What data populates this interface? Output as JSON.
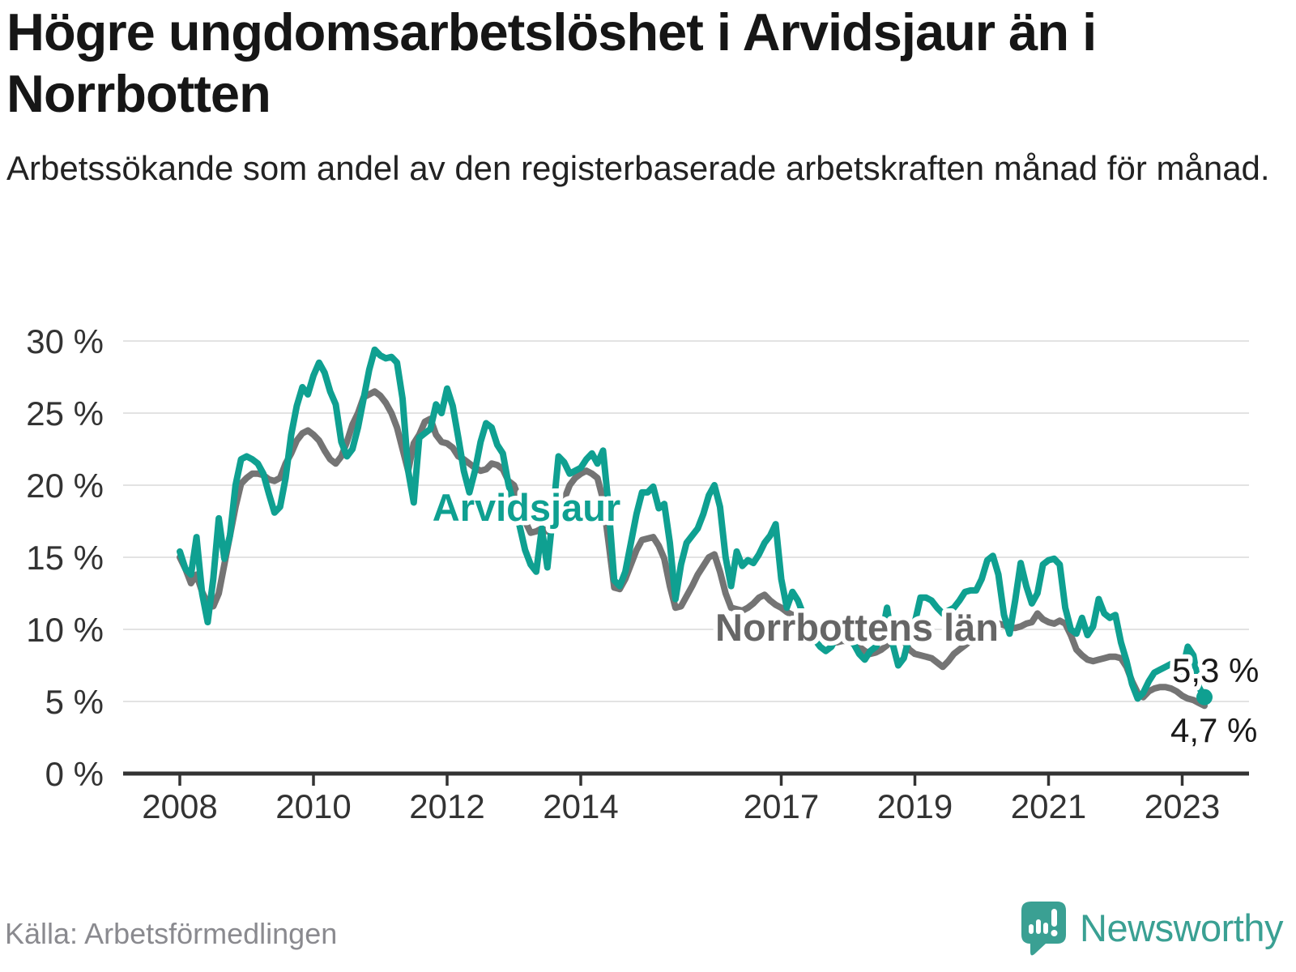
{
  "title": "Högre ungdomsarbetslöshet i Arvidsjaur än i Norrbotten",
  "subtitle": "Arbetssökande som andel av den registerbaserade arbetskraften månad för månad.",
  "source": "Källa: Arbetsförmedlingen",
  "brand": "Newsworthy",
  "colors": {
    "arvidsjaur": "#0fa091",
    "norrbotten": "#747474",
    "norrbotten_label": "#666666",
    "grid": "#e3e3e3",
    "axis": "#333333",
    "tick_text": "#333333",
    "title_text": "#161616",
    "annotation_text": "#1a1a1a",
    "source_text": "#8a8a8f",
    "brand_teal": "#3aa093",
    "background": "#ffffff"
  },
  "annotations": {
    "arvidsjaur_label": "Arvidsjaur",
    "norrbotten_label": "Norrbottens län",
    "end_label_arvidsjaur": "5,3 %",
    "end_label_norrbotten": "4,7 %"
  },
  "chart_data": {
    "type": "line",
    "unit": "%",
    "x_start": "2008-01",
    "x_end": "2023-05",
    "x_interval": "month",
    "n_points": 185,
    "x_tick_years": [
      2008,
      2010,
      2012,
      2014,
      2017,
      2019,
      2021,
      2023
    ],
    "y_ticks": [
      0,
      5,
      10,
      15,
      20,
      25,
      30
    ],
    "y_tick_suffix": " %",
    "ylim": [
      0,
      30
    ],
    "grid": true,
    "legend_position": "inline-labels",
    "series": [
      {
        "name": "Arvidsjaur",
        "color": "#0fa091",
        "end_value_label": "5,3 %",
        "values": [
          15.4,
          14.2,
          13.8,
          16.4,
          12.5,
          10.5,
          13.5,
          17.7,
          14.9,
          16.5,
          20.0,
          21.8,
          22.0,
          21.8,
          21.5,
          20.8,
          19.4,
          18.1,
          18.5,
          20.5,
          23.5,
          25.5,
          26.8,
          26.3,
          27.6,
          28.5,
          27.8,
          26.5,
          25.6,
          23.0,
          22.0,
          22.5,
          24.0,
          26.0,
          28.0,
          29.4,
          29.0,
          28.8,
          28.9,
          28.5,
          26.0,
          21.0,
          18.8,
          23.3,
          23.6,
          23.9,
          25.6,
          25.0,
          26.7,
          25.5,
          23.3,
          21.0,
          19.5,
          21.0,
          23.0,
          24.3,
          24.0,
          22.8,
          22.2,
          20.1,
          18.6,
          17.2,
          15.5,
          14.5,
          14.0,
          17.0,
          14.3,
          18.0,
          22.0,
          21.6,
          20.8,
          21.0,
          21.2,
          21.8,
          22.2,
          21.5,
          22.4,
          18.5,
          13.4,
          13.0,
          14.0,
          16.0,
          18.0,
          19.5,
          19.5,
          19.9,
          18.4,
          18.7,
          16.0,
          12.1,
          14.5,
          16.0,
          16.5,
          17.0,
          18.0,
          19.3,
          20.0,
          18.5,
          15.0,
          13.0,
          15.4,
          14.4,
          14.8,
          14.6,
          15.2,
          16.0,
          16.5,
          17.3,
          13.5,
          11.5,
          12.6,
          12.0,
          11.0,
          10.0,
          9.3,
          8.8,
          8.5,
          8.8,
          9.5,
          10.5,
          10.0,
          9.0,
          8.3,
          7.9,
          8.5,
          8.8,
          9.5,
          11.5,
          9.0,
          7.5,
          8.0,
          9.5,
          10.5,
          12.2,
          12.2,
          12.0,
          11.5,
          11.1,
          11.3,
          11.5,
          12.0,
          12.6,
          12.7,
          12.7,
          13.5,
          14.8,
          15.1,
          13.8,
          11.0,
          9.7,
          12.0,
          14.6,
          13.0,
          11.8,
          12.5,
          14.5,
          14.8,
          14.9,
          14.5,
          11.5,
          10.0,
          9.7,
          10.8,
          9.6,
          10.2,
          12.1,
          11.1,
          10.8,
          11.0,
          9.1,
          7.8,
          6.2,
          5.2,
          5.6,
          6.4,
          7.0,
          7.2,
          7.4,
          7.6,
          7.3,
          7.1,
          8.8,
          8.2,
          6.0,
          5.3
        ]
      },
      {
        "name": "Norrbottens län",
        "color": "#747474",
        "end_value_label": "4,7 %",
        "values": [
          15.0,
          14.2,
          13.2,
          13.8,
          12.6,
          11.8,
          11.6,
          12.5,
          14.5,
          16.5,
          18.5,
          20.1,
          20.5,
          20.8,
          20.8,
          20.7,
          20.4,
          20.3,
          20.5,
          21.5,
          22.2,
          23.1,
          23.6,
          23.8,
          23.5,
          23.1,
          22.4,
          21.8,
          21.5,
          22.0,
          23.0,
          24.2,
          25.0,
          26.1,
          26.3,
          26.5,
          26.2,
          25.7,
          25.0,
          24.0,
          22.5,
          21.0,
          22.9,
          23.5,
          24.4,
          24.6,
          23.5,
          23.0,
          22.9,
          22.6,
          22.0,
          21.8,
          21.5,
          21.2,
          21.0,
          21.1,
          21.5,
          21.4,
          21.1,
          20.3,
          20.0,
          19.0,
          17.5,
          16.7,
          16.8,
          17.0,
          16.8,
          17.2,
          18.0,
          19.0,
          20.0,
          20.5,
          20.8,
          21.0,
          20.8,
          20.5,
          19.0,
          16.0,
          12.9,
          12.8,
          13.5,
          14.5,
          15.5,
          16.2,
          16.3,
          16.4,
          15.8,
          14.9,
          13.0,
          11.5,
          11.6,
          12.3,
          13.0,
          13.8,
          14.4,
          15.0,
          15.2,
          14.0,
          12.5,
          11.5,
          11.4,
          11.3,
          11.5,
          11.8,
          12.2,
          12.4,
          12.0,
          11.7,
          11.5,
          11.2,
          11.0,
          10.7,
          10.4,
          10.1,
          9.9,
          9.6,
          9.4,
          9.2,
          9.1,
          9.2,
          9.2,
          9.0,
          8.8,
          8.5,
          8.3,
          8.4,
          8.6,
          8.9,
          9.4,
          9.8,
          9.2,
          8.6,
          8.3,
          8.2,
          8.1,
          8.0,
          7.7,
          7.4,
          7.8,
          8.3,
          8.6,
          8.9,
          9.2,
          9.6,
          10.0,
          10.2,
          10.4,
          10.4,
          10.3,
          10.1,
          10.1,
          10.2,
          10.4,
          10.5,
          11.1,
          10.7,
          10.5,
          10.4,
          10.6,
          10.4,
          9.6,
          8.6,
          8.2,
          7.9,
          7.8,
          7.9,
          8.0,
          8.1,
          8.1,
          8.0,
          7.4,
          6.4,
          5.6,
          5.3,
          5.7,
          5.9,
          6.0,
          6.0,
          5.9,
          5.7,
          5.4,
          5.2,
          5.1,
          4.9,
          4.7
        ]
      }
    ]
  }
}
